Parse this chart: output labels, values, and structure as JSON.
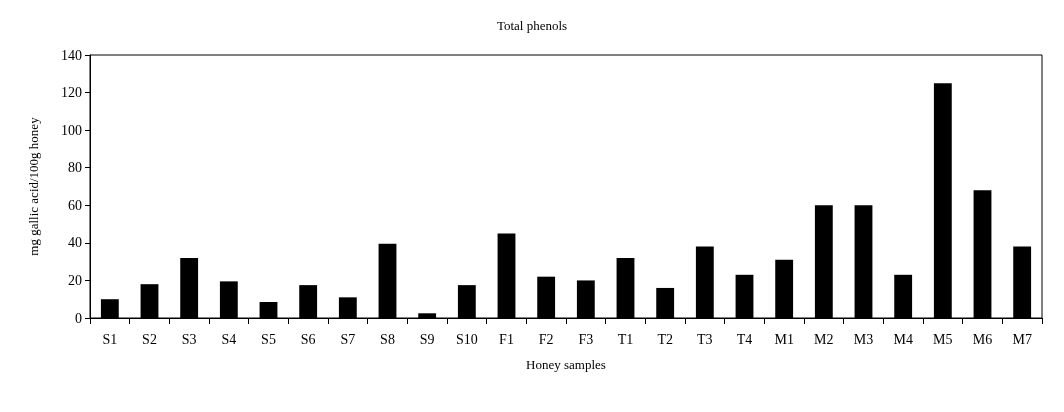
{
  "chart_data": {
    "type": "bar",
    "title": "Total phenols",
    "xlabel": "Honey samples",
    "ylabel": "mg gallic acid/100g honey",
    "categories": [
      "S1",
      "S2",
      "S3",
      "S4",
      "S5",
      "S6",
      "S7",
      "S8",
      "S9",
      "S10",
      "F1",
      "F2",
      "F3",
      "T1",
      "T2",
      "T3",
      "T4",
      "M1",
      "M2",
      "M3",
      "M4",
      "M5",
      "M6",
      "M7"
    ],
    "values": [
      10,
      18,
      32,
      19.5,
      8.5,
      17.5,
      11,
      39.5,
      2.5,
      17.5,
      45,
      22,
      20,
      32,
      16,
      38,
      23,
      31,
      60,
      60,
      23,
      125,
      68,
      38
    ],
    "color": "#000000",
    "ylim": [
      0,
      140
    ],
    "yticks": [
      0,
      20,
      40,
      60,
      80,
      100,
      120,
      140
    ],
    "grid": false
  }
}
